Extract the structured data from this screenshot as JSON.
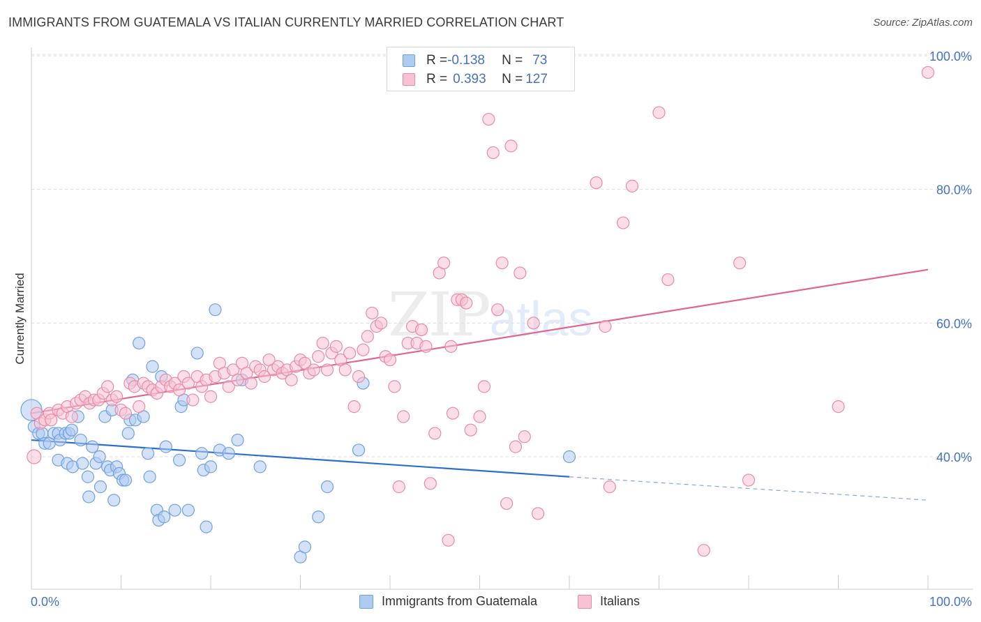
{
  "title": "IMMIGRANTS FROM GUATEMALA VS ITALIAN CURRENTLY MARRIED CORRELATION CHART",
  "source": "Source: ZipAtlas.com",
  "watermark": {
    "zip": "ZIP",
    "atlas": "atlas"
  },
  "legend": {
    "rows": [
      {
        "r_label": "R = ",
        "r_value": "-0.138",
        "n_label": "N = ",
        "n_value": "73",
        "color": "#aecbf0",
        "border": "#6fa0e0"
      },
      {
        "r_label": "R = ",
        "r_value": "0.393",
        "n_label": "N = ",
        "n_value": "127",
        "color": "#f7c3d3",
        "border": "#e88aa8"
      }
    ]
  },
  "bottom_legend": [
    {
      "label": "Immigrants from Guatemala",
      "color": "#aecbf0",
      "border": "#6fa0e0"
    },
    {
      "label": "Italians",
      "color": "#f7c3d3",
      "border": "#e88aa8"
    }
  ],
  "chart_data": {
    "type": "scatter",
    "ylabel": "Currently Married",
    "x_tick_labels": [
      "0.0%",
      "100.0%"
    ],
    "y_tick_labels": [
      "40.0%",
      "60.0%",
      "80.0%",
      "100.0%"
    ],
    "y_ticks": [
      40,
      60,
      80,
      100
    ],
    "xlim": [
      0,
      100
    ],
    "ylim": [
      22,
      102
    ],
    "grid": true,
    "series": [
      {
        "name": "Immigrants from Guatemala",
        "color": "#6fa0e0",
        "fill": "#aecbf0",
        "points": [
          [
            0,
            47
          ],
          [
            0.3,
            44.5
          ],
          [
            0.8,
            43.5
          ],
          [
            1.2,
            43.5
          ],
          [
            1.5,
            42
          ],
          [
            2,
            42
          ],
          [
            2.5,
            43.5
          ],
          [
            3,
            43.5
          ],
          [
            3.2,
            42.5
          ],
          [
            3.8,
            43.5
          ],
          [
            4.2,
            43.5
          ],
          [
            4.5,
            44
          ],
          [
            3,
            39.5
          ],
          [
            4,
            39
          ],
          [
            4.6,
            38.5
          ],
          [
            5.2,
            46
          ],
          [
            5.5,
            42.5
          ],
          [
            5.7,
            39
          ],
          [
            6.3,
            37
          ],
          [
            6.4,
            34
          ],
          [
            6.8,
            41.5
          ],
          [
            7.2,
            39
          ],
          [
            7.6,
            40
          ],
          [
            7.7,
            35.5
          ],
          [
            8.2,
            46
          ],
          [
            8.5,
            38.5
          ],
          [
            8.8,
            38
          ],
          [
            9,
            47
          ],
          [
            9.2,
            33.5
          ],
          [
            9.5,
            38.5
          ],
          [
            9.8,
            37.5
          ],
          [
            10.2,
            36.5
          ],
          [
            10.5,
            36.5
          ],
          [
            10.8,
            43.5
          ],
          [
            11,
            45.5
          ],
          [
            11.3,
            51.5
          ],
          [
            11.6,
            45.5
          ],
          [
            12,
            57
          ],
          [
            12.5,
            46
          ],
          [
            13,
            40.5
          ],
          [
            13.2,
            37
          ],
          [
            13.5,
            53.5
          ],
          [
            14,
            32
          ],
          [
            14.2,
            30.5
          ],
          [
            14.5,
            52
          ],
          [
            14.8,
            31
          ],
          [
            15,
            41.5
          ],
          [
            16,
            32
          ],
          [
            16.5,
            39.5
          ],
          [
            16.7,
            47.5
          ],
          [
            17,
            48.5
          ],
          [
            17.5,
            32
          ],
          [
            18.5,
            55.5
          ],
          [
            19,
            40.5
          ],
          [
            19.2,
            38
          ],
          [
            19.5,
            29.5
          ],
          [
            20,
            38.5
          ],
          [
            20.5,
            62
          ],
          [
            21,
            41
          ],
          [
            22,
            40.5
          ],
          [
            23,
            42.5
          ],
          [
            23.5,
            51.5
          ],
          [
            25.5,
            38.5
          ],
          [
            30,
            25
          ],
          [
            30.5,
            26.5
          ],
          [
            32,
            31
          ],
          [
            33,
            35.5
          ],
          [
            36.5,
            41
          ],
          [
            37,
            51
          ],
          [
            60,
            40
          ]
        ]
      },
      {
        "name": "Italians",
        "color": "#e88aa8",
        "fill": "#f7c3d3",
        "points": [
          [
            0.3,
            40
          ],
          [
            0.6,
            46.5
          ],
          [
            1,
            45
          ],
          [
            1.5,
            45.5
          ],
          [
            2,
            46.5
          ],
          [
            2.2,
            45.5
          ],
          [
            3,
            47
          ],
          [
            3.5,
            46.5
          ],
          [
            4,
            47.5
          ],
          [
            4.5,
            46
          ],
          [
            5,
            48
          ],
          [
            5.5,
            48.5
          ],
          [
            6,
            49
          ],
          [
            6.5,
            48
          ],
          [
            7,
            48.5
          ],
          [
            7.5,
            48.5
          ],
          [
            8,
            49.5
          ],
          [
            8.5,
            50.5
          ],
          [
            9,
            48.5
          ],
          [
            9.5,
            49
          ],
          [
            10,
            47
          ],
          [
            10.5,
            46.5
          ],
          [
            11,
            51
          ],
          [
            11.5,
            50.5
          ],
          [
            12,
            47.5
          ],
          [
            12.5,
            51
          ],
          [
            13,
            50.5
          ],
          [
            13.5,
            50
          ],
          [
            14,
            49.5
          ],
          [
            14.5,
            50.5
          ],
          [
            15,
            51.5
          ],
          [
            15.5,
            50.5
          ],
          [
            16,
            51
          ],
          [
            16.5,
            50
          ],
          [
            17,
            52
          ],
          [
            17.5,
            51
          ],
          [
            18,
            48.5
          ],
          [
            18.5,
            52
          ],
          [
            19,
            50.5
          ],
          [
            19.5,
            51.5
          ],
          [
            20,
            49
          ],
          [
            20.5,
            52
          ],
          [
            21,
            54
          ],
          [
            21.5,
            52.5
          ],
          [
            22,
            50.5
          ],
          [
            22.5,
            53
          ],
          [
            23,
            51.5
          ],
          [
            23.5,
            54
          ],
          [
            24,
            52.5
          ],
          [
            24.5,
            51
          ],
          [
            25,
            53.5
          ],
          [
            25.5,
            53
          ],
          [
            26,
            52
          ],
          [
            26.5,
            54.5
          ],
          [
            27,
            53
          ],
          [
            27.5,
            53.5
          ],
          [
            28,
            52.5
          ],
          [
            28.5,
            53
          ],
          [
            29,
            51.5
          ],
          [
            29.5,
            53.5
          ],
          [
            30,
            54.5
          ],
          [
            30.5,
            54
          ],
          [
            31,
            52.5
          ],
          [
            31.5,
            53
          ],
          [
            32,
            55
          ],
          [
            32.5,
            57
          ],
          [
            33,
            53
          ],
          [
            33.5,
            55.5
          ],
          [
            34,
            56.5
          ],
          [
            34.5,
            54.5
          ],
          [
            35,
            53
          ],
          [
            35.5,
            55.5
          ],
          [
            36,
            47.5
          ],
          [
            36.5,
            52
          ],
          [
            37,
            56
          ],
          [
            37.5,
            58
          ],
          [
            38,
            61.5
          ],
          [
            38.5,
            59.5
          ],
          [
            39,
            60
          ],
          [
            39.5,
            55
          ],
          [
            40,
            54.5
          ],
          [
            40.5,
            50.5
          ],
          [
            41,
            35.5
          ],
          [
            41.5,
            46
          ],
          [
            42,
            57
          ],
          [
            42.5,
            59.5
          ],
          [
            43,
            57
          ],
          [
            43.5,
            59
          ],
          [
            44,
            56.5
          ],
          [
            44.5,
            36
          ],
          [
            45,
            43.5
          ],
          [
            45.5,
            67.5
          ],
          [
            46,
            69
          ],
          [
            46.5,
            27.5
          ],
          [
            46.8,
            56.5
          ],
          [
            47,
            46.5
          ],
          [
            47.5,
            63.5
          ],
          [
            48,
            63.5
          ],
          [
            48.5,
            63
          ],
          [
            49,
            44
          ],
          [
            50,
            46
          ],
          [
            50.5,
            50.5
          ],
          [
            51,
            90.5
          ],
          [
            51.5,
            85.5
          ],
          [
            52,
            62
          ],
          [
            52.5,
            69
          ],
          [
            53,
            33
          ],
          [
            53.5,
            86.5
          ],
          [
            54,
            41.5
          ],
          [
            54.5,
            67.5
          ],
          [
            55,
            43
          ],
          [
            56,
            60
          ],
          [
            56.5,
            31.5
          ],
          [
            63,
            81
          ],
          [
            64,
            59.5
          ],
          [
            64.5,
            35.5
          ],
          [
            66,
            75
          ],
          [
            67,
            80.5
          ],
          [
            70,
            91.5
          ],
          [
            71,
            66.5
          ],
          [
            75,
            26
          ],
          [
            79,
            69
          ],
          [
            80,
            36.5
          ],
          [
            90,
            47.5
          ],
          [
            100,
            97.5
          ]
        ]
      }
    ],
    "trendlines": [
      {
        "series": "Immigrants from Guatemala",
        "x": [
          0,
          60
        ],
        "y": [
          42.5,
          37
        ],
        "dashed_extension_to": [
          100,
          33.5
        ]
      },
      {
        "series": "Italians",
        "x": [
          0,
          100
        ],
        "y": [
          46.5,
          68
        ]
      }
    ]
  }
}
